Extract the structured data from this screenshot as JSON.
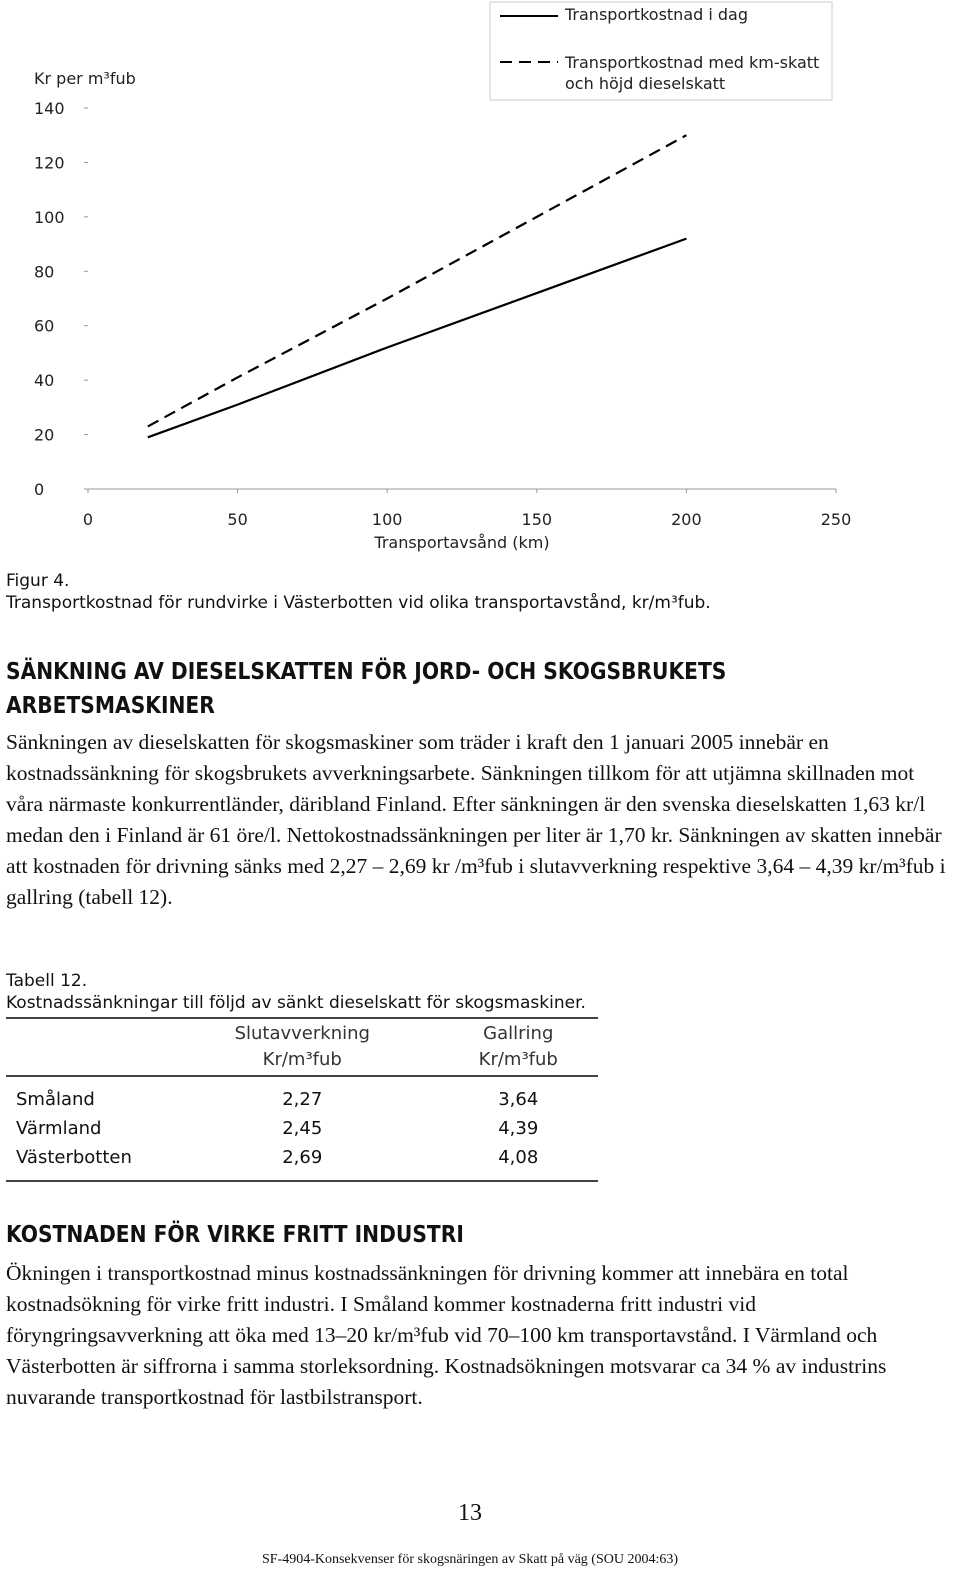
{
  "chart_data": {
    "type": "line",
    "y_axis_label": "Kr per m³fub",
    "x_axis_label": "Transportavsånd (km)",
    "x": [
      20,
      50,
      100,
      150,
      200
    ],
    "series": [
      {
        "name": "Transportkostnad i dag",
        "color": "#000000",
        "line_style": "solid",
        "values": [
          19,
          31,
          52,
          72,
          92
        ]
      },
      {
        "name": "Transportkostnad med km-skatt och höjd dieselskatt",
        "color": "#000000",
        "line_style": "dashed",
        "values": [
          23,
          41,
          70,
          100,
          130
        ]
      }
    ],
    "xlim": [
      0,
      250
    ],
    "xticks": [
      0,
      50,
      100,
      150,
      200,
      250
    ],
    "ylim": [
      0,
      140
    ],
    "yticks": [
      0,
      20,
      40,
      60,
      80,
      100,
      120,
      140
    ],
    "grid": false,
    "legend": "top-right"
  },
  "figure_caption": {
    "label": "Figur 4.",
    "text": "Transportkostnad för rundvirke i Västerbotten vid olika transportavstånd, kr/m³fub."
  },
  "section1": {
    "heading": "SÄNKNING AV DIESELSKATTEN FÖR JORD- OCH SKOGSBRUKETS ARBETSMASKINER",
    "paragraph": "Sänkningen av dieselskatten för skogsmaskiner som träder i kraft den 1 januari 2005 innebär en kostnadssänkning för skogsbrukets avverkningsarbete. Sänkningen tillkom för att utjämna skillnaden mot våra närmaste konkurrentländer, däribland Finland. Efter sänkningen är den svenska dieselskatten 1,63 kr/l medan den i Finland är 61 öre/l. Nettokostnadssänkningen per liter är 1,70 kr. Sänkningen av skatten innebär att kostnaden för drivning sänks med 2,27 – 2,69 kr /m³fub i slutavverkning respektive 3,64 – 4,39 kr/m³fub i gallring (tabell 12)."
  },
  "table": {
    "label": "Tabell 12.",
    "caption": "Kostnadssänkningar till följd av sänkt dieselskatt för skogsmaskiner.",
    "header": [
      [
        "Slutavverkning",
        "Kr/m³fub"
      ],
      [
        "Gallring",
        "Kr/m³fub"
      ]
    ],
    "rows": [
      [
        "Småland",
        "2,27",
        "3,64"
      ],
      [
        "Värmland",
        "2,45",
        "4,39"
      ],
      [
        "Västerbotten",
        "2,69",
        "4,08"
      ]
    ]
  },
  "section2": {
    "heading": "KOSTNADEN FÖR VIRKE FRITT INDUSTRI",
    "paragraph": "Ökningen i transportkostnad minus kostnadssänkningen för drivning kommer att innebära en total kostnadsökning för virke fritt industri. I Småland kommer kostnaderna fritt industri vid föryngringsavverkning att öka med 13–20 kr/m³fub vid 70–100 km transportavstånd. I Värmland och Västerbotten är siffrorna i samma storleksordning. Kostnadsökningen motsvarar ca 34 % av industrins nuvarande transportkostnad för lastbilstransport."
  },
  "footer": {
    "page_number": "13",
    "source": "SF-4904-Konsekvenser för skogsnäringen av Skatt på väg (SOU 2004:63)"
  }
}
